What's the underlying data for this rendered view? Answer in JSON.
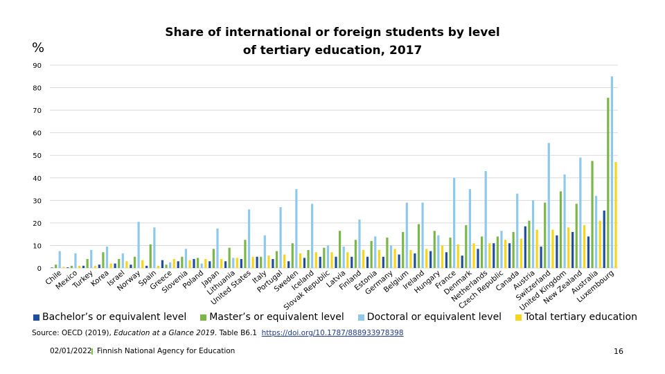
{
  "chart_data": {
    "type": "bar",
    "title": "Share of international or foreign students by level of tertiary education, 2017",
    "ylabel": "%",
    "ylim": [
      0,
      90
    ],
    "yticks": [
      0,
      10,
      20,
      30,
      40,
      50,
      60,
      70,
      80,
      90
    ],
    "grid": true,
    "legend_position": "bottom",
    "categories": [
      "Chile",
      "Mexico",
      "Turkey",
      "Korea",
      "Israel",
      "Norway",
      "Spain",
      "Greece",
      "Slovenia",
      "Poland",
      "Japan",
      "Lithuania",
      "United States",
      "Italy",
      "Portugal",
      "Sweden",
      "Iceland",
      "Slovak Republic",
      "Latvia",
      "Finland",
      "Estonia",
      "Germany",
      "Belgium",
      "Ireland",
      "Hungary",
      "France",
      "Denmark",
      "Netherlands",
      "Czech Republic",
      "Canada",
      "Austria",
      "Switzerland",
      "United Kingdom",
      "New Zealand",
      "Australia",
      "Luxembourg"
    ],
    "series": [
      {
        "name": "Bachelor’s or equivalent level",
        "color": "#1f4e9c",
        "values": [
          0.2,
          0.3,
          1,
          1.5,
          2,
          1.5,
          1,
          3.5,
          3,
          4,
          3,
          3,
          4,
          5,
          4,
          3,
          4.5,
          5,
          5,
          5,
          5,
          5,
          6,
          6.5,
          7.5,
          7,
          5.5,
          8.5,
          11,
          11,
          18.5,
          9.5,
          14.5,
          16,
          14,
          25.5
        ]
      },
      {
        "name": "Master’s or equivalent level",
        "color": "#7ab648",
        "values": [
          1.5,
          1,
          4,
          7,
          4,
          5,
          10.5,
          1.5,
          5,
          4.5,
          8.5,
          9,
          12.5,
          5,
          7.5,
          11,
          8,
          9,
          16.5,
          12.5,
          12,
          13.5,
          16,
          19.5,
          16.5,
          13.5,
          19,
          14,
          14,
          16,
          21,
          29,
          34,
          28.5,
          47.5,
          75.5
        ]
      },
      {
        "name": "Doctoral or equivalent level",
        "color": "#8ec9ec",
        "values": [
          7.5,
          6.5,
          8,
          9.5,
          6.5,
          20.5,
          18,
          2.5,
          8.5,
          2,
          17.5,
          4.5,
          26,
          14.5,
          27,
          35,
          28.5,
          10,
          9.5,
          21.5,
          14,
          10,
          29,
          29,
          14.5,
          40,
          35,
          43,
          16.5,
          33,
          30,
          55.5,
          41.5,
          49,
          32,
          85
        ]
      },
      {
        "name": "Total tertiary education",
        "color": "#f7d51d",
        "values": [
          0.5,
          1,
          1,
          2,
          3,
          3.5,
          1,
          4,
          3.5,
          4,
          4,
          4.5,
          5,
          5.5,
          6,
          6.5,
          7,
          7,
          7,
          8,
          8,
          8.5,
          8,
          8.5,
          10,
          10.5,
          11,
          11,
          12.5,
          13,
          17,
          17,
          18,
          19,
          21,
          47
        ]
      }
    ]
  },
  "source": {
    "text": "Source: OECD (2019), Education at a Glance 2019. Table B6.1  ",
    "italic": "Education at a Glance 2019",
    "link": "https://doi.org/10.1787/888933978398"
  },
  "footer": {
    "date": "02/01/2022",
    "org": "Finnish National Agency for Education",
    "page": "16"
  }
}
